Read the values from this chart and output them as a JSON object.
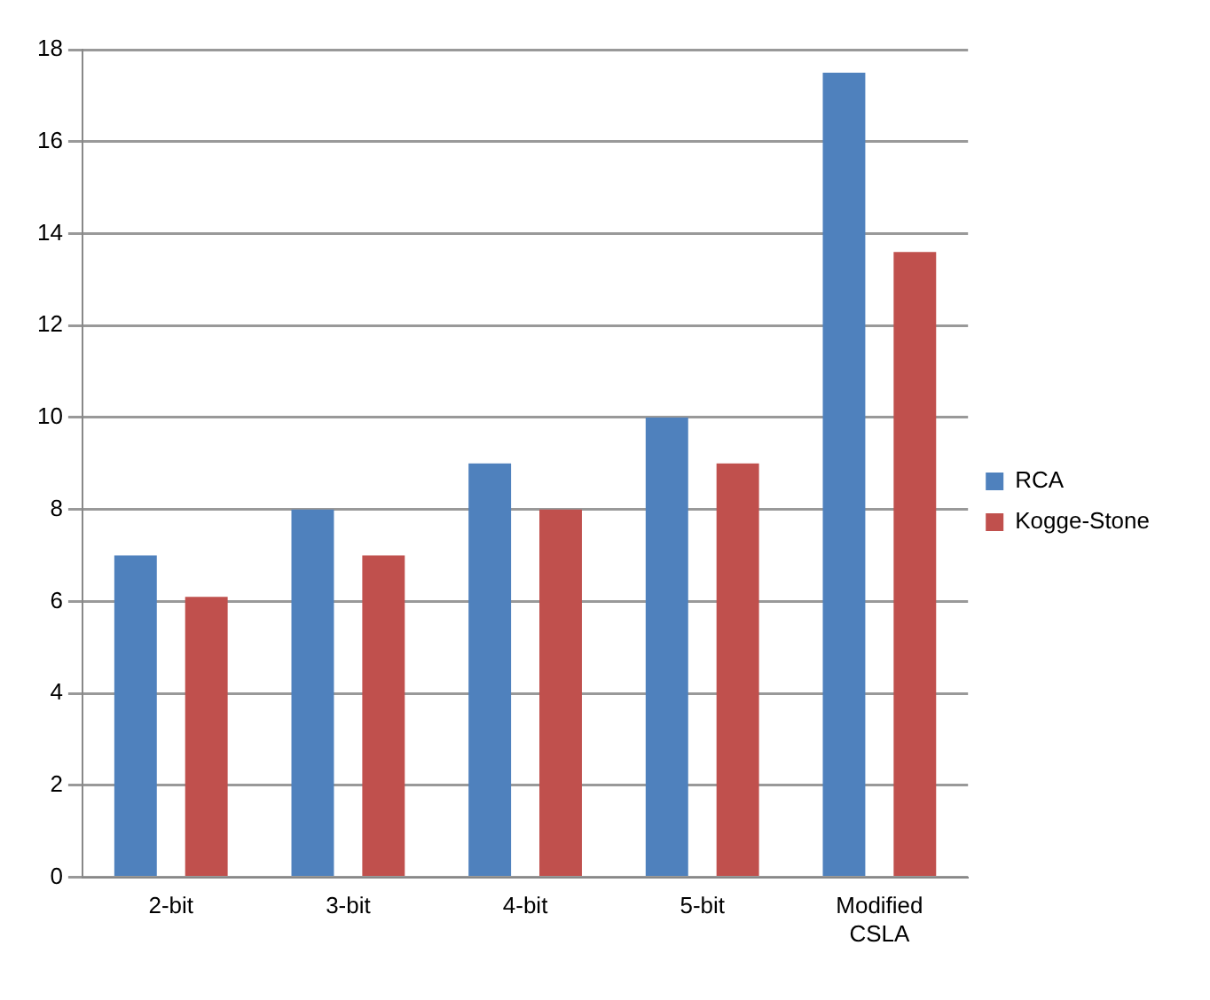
{
  "chart_data": {
    "type": "bar",
    "categories": [
      "2-bit",
      "3-bit",
      "4-bit",
      "5-bit",
      "Modified CSLA"
    ],
    "series": [
      {
        "name": "RCA",
        "color": "#4f81bd",
        "values": [
          7,
          8,
          9,
          10,
          17.5
        ]
      },
      {
        "name": "Kogge-Stone",
        "color": "#c0504d",
        "values": [
          6.1,
          7,
          8,
          9,
          13.6
        ]
      }
    ],
    "ylim": [
      0,
      18
    ],
    "yticks": [
      0,
      2,
      4,
      6,
      8,
      10,
      12,
      14,
      16,
      18
    ],
    "grid": "y",
    "legend": "right"
  }
}
